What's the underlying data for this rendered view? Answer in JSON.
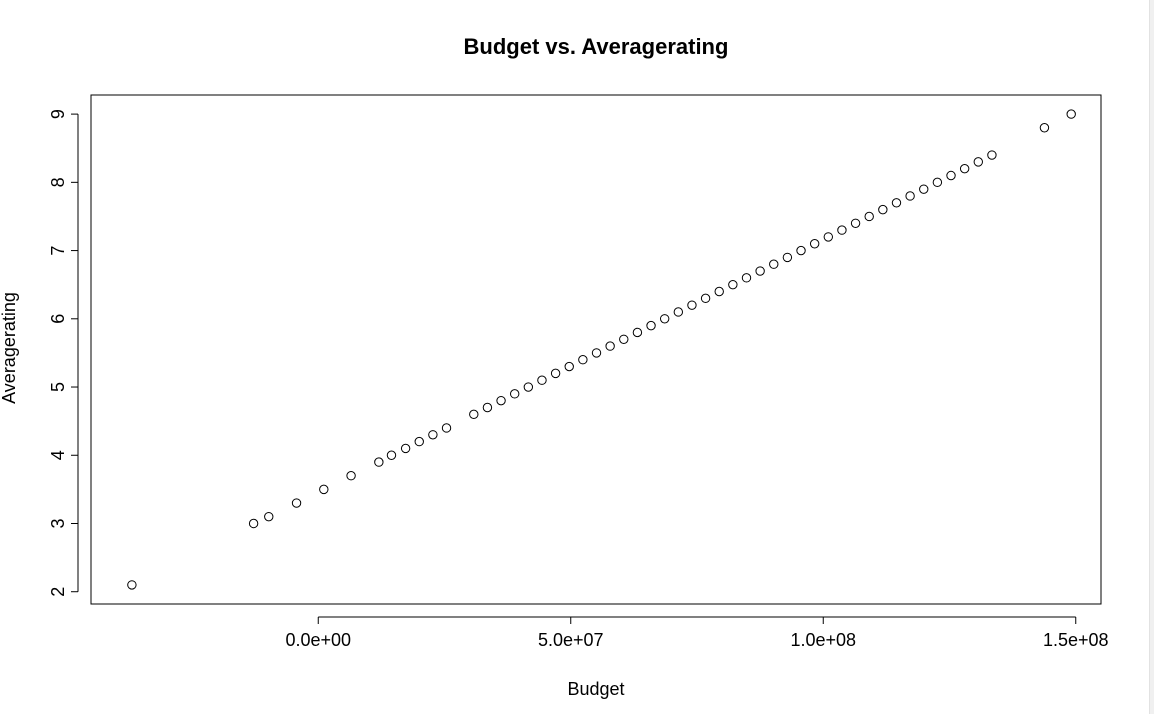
{
  "chart_data": {
    "type": "scatter",
    "title": "Budget vs. Averagerating",
    "xlabel": "Budget",
    "ylabel": "Averagerating",
    "xlim": [
      -45000000,
      155000000
    ],
    "ylim": [
      1.82,
      9.28
    ],
    "x_ticks": [
      0,
      50000000,
      100000000,
      150000000
    ],
    "x_tick_labels": [
      "0.0e+00",
      "5.0e+07",
      "1.0e+08",
      "1.5e+08"
    ],
    "y_ticks": [
      2,
      3,
      4,
      5,
      6,
      7,
      8,
      9
    ],
    "y_tick_labels": [
      "2",
      "3",
      "4",
      "5",
      "6",
      "7",
      "8",
      "9"
    ],
    "grid": false,
    "marker": "open-circle",
    "colors": {
      "point": "#000000",
      "axis": "#000000"
    },
    "x": [
      -36900000,
      -12800000,
      -9800000,
      -4300000,
      1100000,
      6500000,
      12000000,
      14500000,
      17300000,
      20000000,
      22700000,
      25400000,
      30800000,
      33500000,
      36200000,
      38900000,
      41600000,
      44300000,
      47000000,
      49700000,
      52400000,
      55100000,
      57800000,
      60500000,
      63200000,
      65900000,
      68600000,
      71300000,
      74000000,
      76700000,
      79400000,
      82100000,
      84800000,
      87500000,
      90200000,
      92900000,
      95600000,
      98300000,
      101000000,
      103700000,
      106400000,
      109100000,
      111800000,
      114500000,
      117200000,
      119900000,
      122600000,
      125300000,
      128000000,
      130700000,
      133400000,
      143800000,
      149100000
    ],
    "y": [
      2.1,
      3.0,
      3.1,
      3.3,
      3.5,
      3.7,
      3.9,
      4.0,
      4.1,
      4.2,
      4.3,
      4.4,
      4.6,
      4.7,
      4.8,
      4.9,
      5.0,
      5.1,
      5.2,
      5.3,
      5.4,
      5.5,
      5.6,
      5.7,
      5.8,
      5.9,
      6.0,
      6.1,
      6.2,
      6.3,
      6.4,
      6.5,
      6.6,
      6.7,
      6.8,
      6.9,
      7.0,
      7.1,
      7.2,
      7.3,
      7.4,
      7.5,
      7.6,
      7.7,
      7.8,
      7.9,
      8.0,
      8.1,
      8.2,
      8.3,
      8.4,
      8.8,
      9.0
    ]
  }
}
